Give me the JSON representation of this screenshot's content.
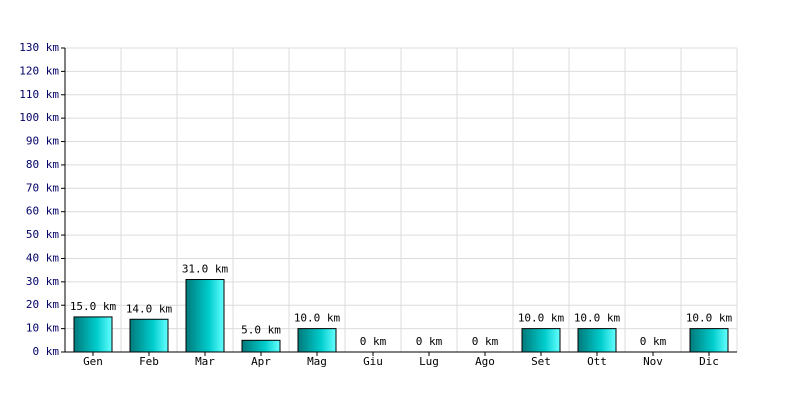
{
  "chart_data": {
    "type": "bar",
    "categories": [
      "Gen",
      "Feb",
      "Mar",
      "Apr",
      "Mag",
      "Giu",
      "Lug",
      "Ago",
      "Set",
      "Ott",
      "Nov",
      "Dic"
    ],
    "values": [
      15,
      14,
      31,
      5,
      10,
      0,
      0,
      0,
      10,
      10,
      0,
      10
    ],
    "value_labels": [
      "15.0 km",
      "14.0 km",
      "31.0 km",
      "5.0 km",
      "10.0 km",
      "0 km",
      "0 km",
      "0 km",
      "10.0 km",
      "10.0 km",
      "0 km",
      "10.0 km"
    ],
    "color": "#00cccc",
    "ylim": [
      0,
      130
    ],
    "yticks": [
      {
        "value": 0,
        "label": "0 km"
      },
      {
        "value": 10,
        "label": "10 km"
      },
      {
        "value": 20,
        "label": "20 km"
      },
      {
        "value": 30,
        "label": "30 km"
      },
      {
        "value": 40,
        "label": "40 km"
      },
      {
        "value": 50,
        "label": "50 km"
      },
      {
        "value": 60,
        "label": "60 km"
      },
      {
        "value": 70,
        "label": "70 km"
      },
      {
        "value": 80,
        "label": "80 km"
      },
      {
        "value": 90,
        "label": "90 km"
      },
      {
        "value": 100,
        "label": "100 km"
      },
      {
        "value": 110,
        "label": "110 km"
      },
      {
        "value": 120,
        "label": "120 km"
      },
      {
        "value": 130,
        "label": "130 km"
      }
    ],
    "grid": true
  }
}
